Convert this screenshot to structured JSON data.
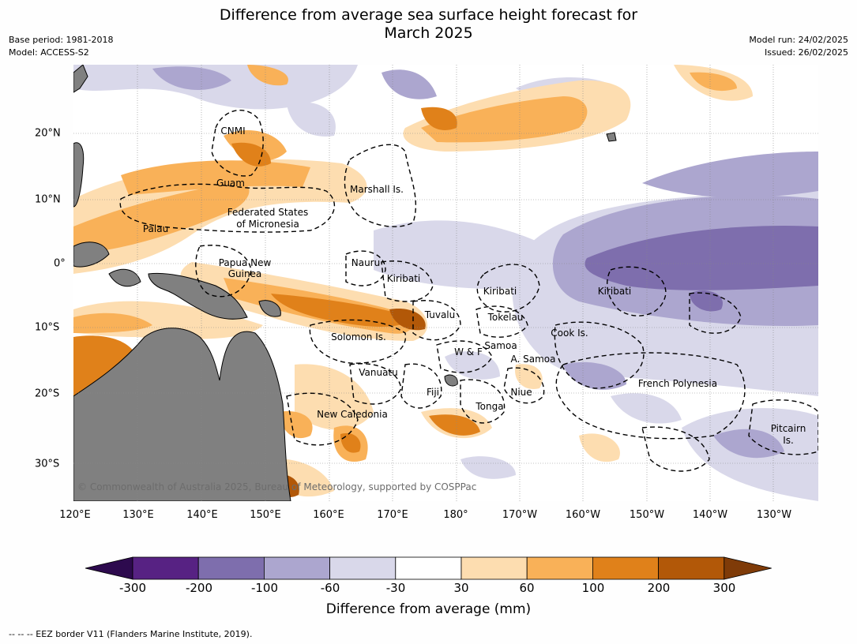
{
  "title_line1": "Difference from average sea surface height forecast for",
  "title_line2": "March 2025",
  "meta": {
    "base_period": "Base period: 1981-2018",
    "model": "Model: ACCESS-S2",
    "model_run": "Model run: 24/02/2025",
    "issued": "Issued: 26/02/2025"
  },
  "lon_ticks": [
    "120°E",
    "130°E",
    "140°E",
    "150°E",
    "160°E",
    "170°E",
    "180°",
    "170°W",
    "160°W",
    "150°W",
    "140°W",
    "130°W"
  ],
  "lat_ticks": [
    "20°N",
    "10°N",
    "0°",
    "10°S",
    "20°S",
    "30°S"
  ],
  "places": {
    "cnmi": "CNMI",
    "guam": "Guam",
    "marshall": "Marshall Is.",
    "fsm_1": "Federated States",
    "fsm_2": "of Micronesia",
    "palau": "Palau",
    "png_1": "Papua New",
    "png_2": "Guinea",
    "nauru": "Nauru",
    "kiribati_w": "Kiribati",
    "kiribati_c": "Kiribati",
    "kiribati_e": "Kiribati",
    "tuvalu": "Tuvalu",
    "tokelau": "Tokelau",
    "solomon": "Solomon Is.",
    "cook": "Cook Is.",
    "samoa": "Samoa",
    "wf": "W & F",
    "asamoa": "A. Samoa",
    "vanuatu": "Vanuatu",
    "fiji": "Fiji",
    "niue": "Niue",
    "tonga": "Tonga",
    "frpoly": "French Polynesia",
    "newcal": "New Caledonia",
    "pitcairn_1": "Pitcairn",
    "pitcairn_2": "Is."
  },
  "copyright": "© Commonwealth of Australia 2025, Bureau of Meteorology, supported by COSPPac",
  "colorbar": {
    "ticks": [
      "-300",
      "-200",
      "-100",
      "-60",
      "-30",
      "30",
      "60",
      "100",
      "200",
      "300"
    ],
    "colors": [
      "#2d0a4e",
      "#572283",
      "#7e6ead",
      "#aca6cf",
      "#d9d8ea",
      "#ffffff",
      "#fdddb0",
      "#f9b158",
      "#e0811a",
      "#b25808",
      "#7f3b08"
    ],
    "label": "Difference from average (mm)"
  },
  "map_colors": {
    "land": "#808080",
    "ocean_neutral": "#ffffff"
  },
  "footnote": "--  --  -- EEZ border V11 (Flanders Marine Institute, 2019)."
}
